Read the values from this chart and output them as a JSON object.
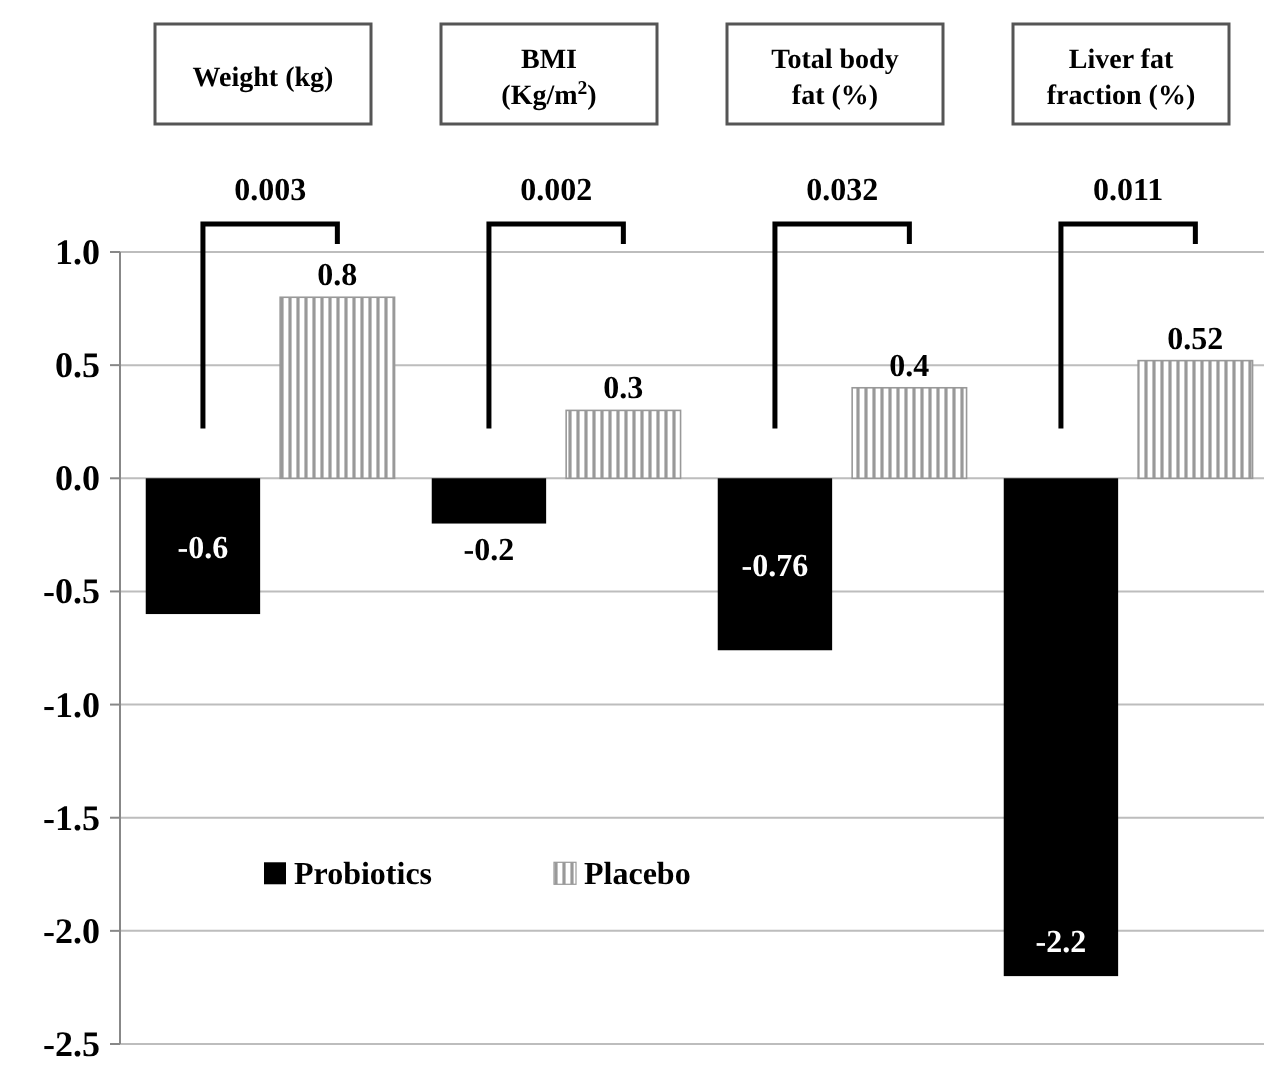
{
  "chart_data": {
    "type": "bar",
    "categories": [
      "Weight (kg)",
      "BMI (Kg/m$^{2}$)",
      "Total  body fat (%)",
      "Liver fat fraction (%)"
    ],
    "series": [
      {
        "name": "Probiotics",
        "color": "#000000",
        "values": [
          -0.6,
          -0.2,
          -0.76,
          -2.2
        ]
      },
      {
        "name": "Placebo",
        "color": "#999999",
        "values": [
          0.8,
          0.3,
          0.4,
          0.52
        ]
      }
    ],
    "ylim": [
      -2.5,
      1.0
    ],
    "yticks": [
      {
        "value": -2.5,
        "label": "-2.5"
      },
      {
        "value": -2,
        "label": "-2.0"
      },
      {
        "value": -1.5,
        "label": "-1.5"
      },
      {
        "value": -1,
        "label": "-1.0"
      },
      {
        "value": -0.5,
        "label": "-0.5"
      },
      {
        "value": 0,
        "label": "0.0"
      },
      {
        "value": 0.5,
        "label": "0.5"
      },
      {
        "value": 1,
        "label": "1.0"
      }
    ],
    "grid": "y",
    "legend": "bottom left",
    "data_labels": true,
    "annotations": [
      "0.003",
      "0.002",
      "0.032",
      "0.011"
    ]
  }
}
